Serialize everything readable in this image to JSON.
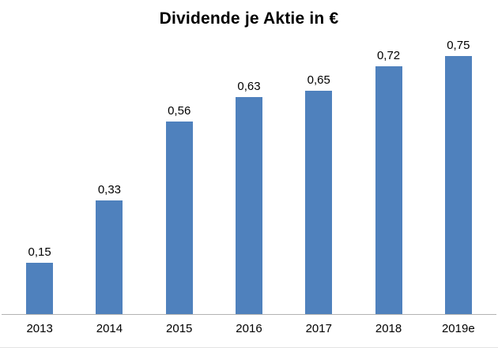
{
  "chart_data": {
    "type": "bar",
    "title": "Dividende je Aktie in €",
    "categories": [
      "2013",
      "2014",
      "2015",
      "2016",
      "2017",
      "2018",
      "2019e"
    ],
    "values": [
      0.15,
      0.33,
      0.56,
      0.63,
      0.65,
      0.72,
      0.75
    ],
    "value_labels": [
      "0,15",
      "0,33",
      "0,56",
      "0,63",
      "0,65",
      "0,72",
      "0,75"
    ],
    "xlabel": "",
    "ylabel": "",
    "ylim": [
      0,
      0.75
    ],
    "grid": false,
    "legend": false,
    "decimal_separator": ",",
    "bar_color": "#4F81BD",
    "axis_line_color": "#b3b3b3",
    "label_color": "#000000",
    "background_color": "#ffffff"
  }
}
